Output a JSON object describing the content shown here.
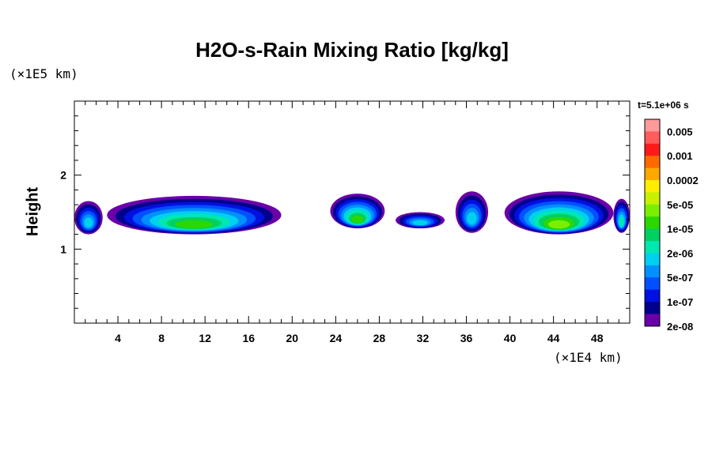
{
  "chart_data": {
    "type": "heatmap",
    "title": "H2O-s-Rain Mixing Ratio [kg/kg]",
    "xlabel": "",
    "ylabel": "Height",
    "x_scale_label": "(×1E4 km)",
    "y_scale_label": "(×1E5 km)",
    "time_label": "t=5.1e+06 s",
    "xlim": [
      0,
      51
    ],
    "ylim": [
      0,
      3
    ],
    "x_ticks": [
      4,
      8,
      12,
      16,
      20,
      24,
      28,
      32,
      36,
      40,
      44,
      48
    ],
    "y_ticks": [
      1,
      2
    ],
    "colorbar": {
      "labels": [
        "0.005",
        "0.001",
        "0.0002",
        "5e-05",
        "1e-05",
        "2e-06",
        "5e-07",
        "1e-07",
        "2e-08"
      ],
      "colors": [
        "#ff9a9a",
        "#ff5c5c",
        "#ff1a1a",
        "#ff6a00",
        "#ffa800",
        "#ffee00",
        "#c8f000",
        "#7af000",
        "#2ad800",
        "#00d060",
        "#00e8b0",
        "#00d0f0",
        "#0090ff",
        "#0050ff",
        "#0010e0",
        "#00008c",
        "#6a00a8"
      ]
    },
    "rain_cells": [
      {
        "x_range": [
          0,
          2.6
        ],
        "y_range": [
          1.2,
          1.65
        ],
        "max_level": "5e-07"
      },
      {
        "x_range": [
          3,
          19
        ],
        "y_range": [
          1.2,
          1.72
        ],
        "max_level": "1e-05"
      },
      {
        "x_range": [
          23.5,
          28.5
        ],
        "y_range": [
          1.28,
          1.75
        ],
        "max_level": "1e-05"
      },
      {
        "x_range": [
          29.5,
          34
        ],
        "y_range": [
          1.28,
          1.5
        ],
        "max_level": "5e-07"
      },
      {
        "x_range": [
          35,
          38
        ],
        "y_range": [
          1.22,
          1.78
        ],
        "max_level": "5e-07"
      },
      {
        "x_range": [
          39.5,
          49.5
        ],
        "y_range": [
          1.2,
          1.78
        ],
        "max_level": "5e-05"
      },
      {
        "x_range": [
          49.5,
          51
        ],
        "y_range": [
          1.22,
          1.68
        ],
        "max_level": "2e-06"
      }
    ]
  }
}
